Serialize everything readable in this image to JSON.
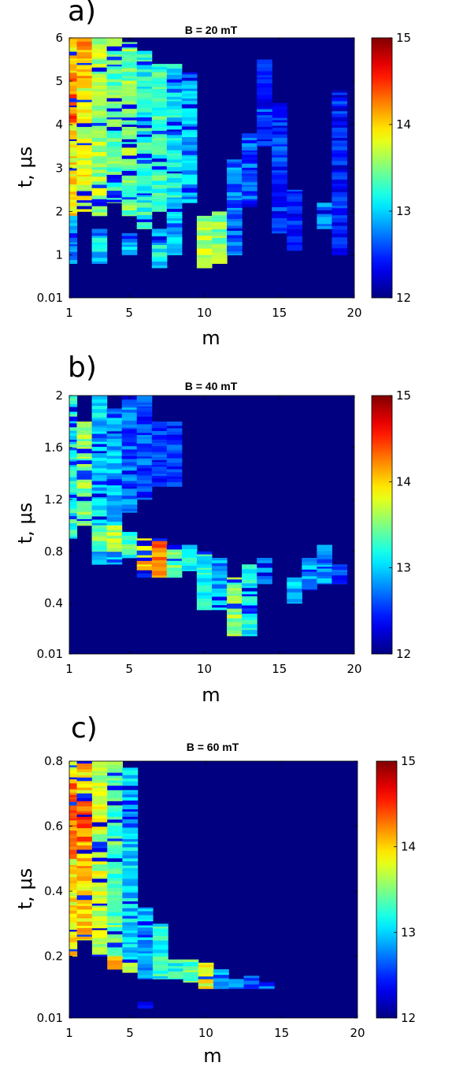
{
  "figure": {
    "colormap": "jet",
    "colorbar_range": [
      12,
      15
    ],
    "panels": [
      {
        "label": "a)",
        "title": "B = 20 mT",
        "xlabel": "m",
        "ylabel": "t, μs"
      },
      {
        "label": "b)",
        "title": "B = 40 mT",
        "xlabel": "m",
        "ylabel": "t, μs"
      },
      {
        "label": "c)",
        "title": "B = 60 mT",
        "xlabel": "m",
        "ylabel": "t, μs"
      }
    ]
  },
  "chart_data": [
    {
      "type": "heatmap",
      "title": "B = 20 mT",
      "xlabel": "m",
      "ylabel": "t, μs",
      "xlim": [
        1,
        20
      ],
      "ylim": [
        0.01,
        6
      ],
      "xticks": [
        "1",
        "5",
        "10",
        "15",
        "20"
      ],
      "yticks": [
        "0.01",
        "1",
        "2",
        "3",
        "4",
        "5",
        "6"
      ],
      "colorbar": {
        "range": [
          12,
          15
        ],
        "ticks": [
          "12",
          "13",
          "14",
          "15"
        ]
      },
      "colormap": "jet",
      "background": 12,
      "blobs": [
        {
          "m": 1,
          "t0": 1.9,
          "t1": 6.0,
          "v": 13.9
        },
        {
          "m": 1,
          "t0": 4.0,
          "t1": 5.2,
          "v": 14.3
        },
        {
          "m": 2,
          "t0": 2.0,
          "t1": 6.0,
          "v": 13.8
        },
        {
          "m": 2,
          "t0": 5.0,
          "t1": 6.0,
          "v": 14.2
        },
        {
          "m": 3,
          "t0": 1.9,
          "t1": 6.0,
          "v": 13.6
        },
        {
          "m": 4,
          "t0": 2.2,
          "t1": 6.0,
          "v": 13.4
        },
        {
          "m": 5,
          "t0": 1.9,
          "t1": 5.9,
          "v": 13.5
        },
        {
          "m": 6,
          "t0": 1.6,
          "t1": 5.7,
          "v": 13.2
        },
        {
          "m": 7,
          "t0": 2.0,
          "t1": 5.4,
          "v": 13.3
        },
        {
          "m": 8,
          "t0": 1.8,
          "t1": 5.4,
          "v": 13.1
        },
        {
          "m": 9,
          "t0": 2.2,
          "t1": 5.2,
          "v": 12.9
        },
        {
          "m": 10,
          "t0": 0.7,
          "t1": 1.9,
          "v": 13.6
        },
        {
          "m": 11,
          "t0": 0.8,
          "t1": 2.0,
          "v": 13.5
        },
        {
          "m": 1,
          "t0": 0.8,
          "t1": 1.9,
          "v": 12.8
        },
        {
          "m": 3,
          "t0": 0.8,
          "t1": 1.6,
          "v": 13.0
        },
        {
          "m": 5,
          "t0": 1.0,
          "t1": 1.5,
          "v": 12.9
        },
        {
          "m": 7,
          "t0": 0.7,
          "t1": 1.6,
          "v": 13.1
        },
        {
          "m": 8,
          "t0": 1.0,
          "t1": 1.9,
          "v": 12.9
        },
        {
          "m": 12,
          "t0": 1.0,
          "t1": 3.2,
          "v": 12.7
        },
        {
          "m": 13,
          "t0": 2.1,
          "t1": 3.8,
          "v": 12.6
        },
        {
          "m": 15,
          "t0": 1.5,
          "t1": 4.5,
          "v": 12.5
        },
        {
          "m": 16,
          "t0": 1.1,
          "t1": 2.5,
          "v": 12.5
        },
        {
          "m": 18,
          "t0": 1.6,
          "t1": 2.2,
          "v": 12.9
        },
        {
          "m": 19,
          "t0": 1.0,
          "t1": 4.8,
          "v": 12.4
        },
        {
          "m": 14,
          "t0": 3.5,
          "t1": 5.5,
          "v": 12.5
        }
      ]
    },
    {
      "type": "heatmap",
      "title": "B = 40 mT",
      "xlabel": "m",
      "ylabel": "t, μs",
      "xlim": [
        1,
        20
      ],
      "ylim": [
        0.01,
        2
      ],
      "xticks": [
        "1",
        "5",
        "10",
        "15",
        "20"
      ],
      "yticks": [
        "0.01",
        "0.4",
        "0.8",
        "1.2",
        "1.6",
        "2"
      ],
      "colorbar": {
        "range": [
          12,
          15
        ],
        "ticks": [
          "12",
          "13",
          "14",
          "15"
        ]
      },
      "colormap": "jet",
      "background": 12,
      "blobs": [
        {
          "m": 1,
          "t0": 0.9,
          "t1": 2.0,
          "v": 13.2
        },
        {
          "m": 2,
          "t0": 1.0,
          "t1": 1.8,
          "v": 13.5
        },
        {
          "m": 3,
          "t0": 0.7,
          "t1": 2.0,
          "v": 13.0
        },
        {
          "m": 4,
          "t0": 0.7,
          "t1": 1.9,
          "v": 12.9
        },
        {
          "m": 5,
          "t0": 1.1,
          "t1": 2.0,
          "v": 12.7
        },
        {
          "m": 6,
          "t0": 1.2,
          "t1": 2.0,
          "v": 12.6
        },
        {
          "m": 7,
          "t0": 1.3,
          "t1": 1.8,
          "v": 12.5
        },
        {
          "m": 8,
          "t0": 1.3,
          "t1": 1.8,
          "v": 12.5
        },
        {
          "m": 3,
          "t0": 0.8,
          "t1": 1.0,
          "v": 13.4
        },
        {
          "m": 4,
          "t0": 0.8,
          "t1": 1.0,
          "v": 13.7
        },
        {
          "m": 5,
          "t0": 0.75,
          "t1": 0.95,
          "v": 13.3
        },
        {
          "m": 6,
          "t0": 0.6,
          "t1": 0.9,
          "v": 14.0
        },
        {
          "m": 7,
          "t0": 0.6,
          "t1": 0.9,
          "v": 14.3
        },
        {
          "m": 8,
          "t0": 0.6,
          "t1": 0.85,
          "v": 13.4
        },
        {
          "m": 9,
          "t0": 0.65,
          "t1": 0.85,
          "v": 13.1
        },
        {
          "m": 10,
          "t0": 0.35,
          "t1": 0.8,
          "v": 13.2
        },
        {
          "m": 11,
          "t0": 0.35,
          "t1": 0.75,
          "v": 12.9
        },
        {
          "m": 12,
          "t0": 0.15,
          "t1": 0.6,
          "v": 13.5
        },
        {
          "m": 13,
          "t0": 0.15,
          "t1": 0.7,
          "v": 13.2
        },
        {
          "m": 14,
          "t0": 0.55,
          "t1": 0.75,
          "v": 12.7
        },
        {
          "m": 16,
          "t0": 0.4,
          "t1": 0.6,
          "v": 12.9
        },
        {
          "m": 17,
          "t0": 0.5,
          "t1": 0.75,
          "v": 12.8
        },
        {
          "m": 18,
          "t0": 0.55,
          "t1": 0.85,
          "v": 12.8
        },
        {
          "m": 19,
          "t0": 0.55,
          "t1": 0.7,
          "v": 12.6
        }
      ]
    },
    {
      "type": "heatmap",
      "title": "B = 60 mT",
      "xlabel": "m",
      "ylabel": "t, μs",
      "xlim": [
        1,
        20
      ],
      "ylim": [
        0.01,
        0.8
      ],
      "xticks": [
        "1",
        "5",
        "10",
        "15",
        "20"
      ],
      "yticks": [
        "0.01",
        "0.2",
        "0.4",
        "0.6",
        "0.8"
      ],
      "colorbar": {
        "range": [
          12,
          15
        ],
        "ticks": [
          "12",
          "13",
          "14",
          "15"
        ]
      },
      "colormap": "jet",
      "background": 12,
      "blobs": [
        {
          "m": 1,
          "t0": 0.2,
          "t1": 0.8,
          "v": 13.9
        },
        {
          "m": 1,
          "t0": 0.5,
          "t1": 0.75,
          "v": 14.3
        },
        {
          "m": 2,
          "t0": 0.25,
          "t1": 0.8,
          "v": 14.0
        },
        {
          "m": 2,
          "t0": 0.55,
          "t1": 0.7,
          "v": 14.3
        },
        {
          "m": 3,
          "t0": 0.2,
          "t1": 0.8,
          "v": 13.7
        },
        {
          "m": 4,
          "t0": 0.2,
          "t1": 0.8,
          "v": 13.4
        },
        {
          "m": 5,
          "t0": 0.18,
          "t1": 0.78,
          "v": 13.0
        },
        {
          "m": 4,
          "t0": 0.16,
          "t1": 0.2,
          "v": 14.2
        },
        {
          "m": 5,
          "t0": 0.15,
          "t1": 0.19,
          "v": 13.8
        },
        {
          "m": 6,
          "t0": 0.13,
          "t1": 0.35,
          "v": 12.9
        },
        {
          "m": 7,
          "t0": 0.13,
          "t1": 0.3,
          "v": 13.2
        },
        {
          "m": 8,
          "t0": 0.13,
          "t1": 0.19,
          "v": 13.2
        },
        {
          "m": 9,
          "t0": 0.12,
          "t1": 0.19,
          "v": 13.4
        },
        {
          "m": 10,
          "t0": 0.1,
          "t1": 0.18,
          "v": 13.8
        },
        {
          "m": 11,
          "t0": 0.1,
          "t1": 0.16,
          "v": 12.9
        },
        {
          "m": 12,
          "t0": 0.1,
          "t1": 0.13,
          "v": 12.7
        },
        {
          "m": 13,
          "t0": 0.1,
          "t1": 0.14,
          "v": 12.6
        },
        {
          "m": 14,
          "t0": 0.1,
          "t1": 0.12,
          "v": 12.6
        },
        {
          "m": 6,
          "t0": 0.04,
          "t1": 0.06,
          "v": 12.4
        }
      ]
    }
  ]
}
